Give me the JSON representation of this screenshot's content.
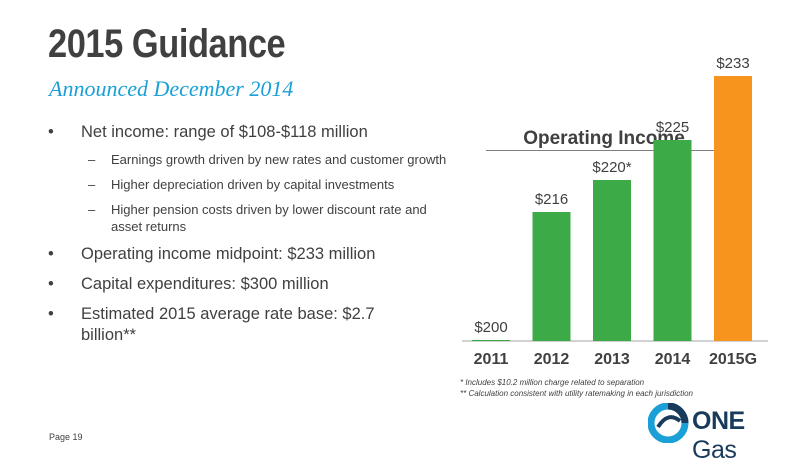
{
  "header": {
    "title": "2015 Guidance",
    "subtitle": "Announced December 2014"
  },
  "bullets": [
    {
      "text": "Net income: range of $108-$118 million",
      "subs": [
        "Earnings growth driven by new rates and customer growth",
        "Higher depreciation driven by capital investments",
        "Higher pension costs driven by lower discount rate and asset returns"
      ]
    },
    {
      "text": "Operating income midpoint: $233 million",
      "subs": []
    },
    {
      "text": "Capital expenditures: $300 million",
      "subs": []
    },
    {
      "text": "Estimated 2015 average rate base: $2.7 billion**",
      "subs": []
    }
  ],
  "footnotes": [
    "* Includes $10.2 million charge related to separation",
    "** Calculation consistent with utility ratemaking in each jurisdiction"
  ],
  "page_label": "Page 19",
  "logo": {
    "word1": "ONE",
    "word2": "Gas"
  },
  "chart_data": {
    "type": "bar",
    "title": "Operating Income",
    "categories": [
      "2011",
      "2012",
      "2013",
      "2014",
      "2015G"
    ],
    "values": [
      200,
      216,
      220,
      225,
      233
    ],
    "value_labels": [
      "$200",
      "$216",
      "$220*",
      "$225",
      "$233"
    ],
    "colors": [
      "#3daa48",
      "#3daa48",
      "#3daa48",
      "#3daa48",
      "#f7941d"
    ],
    "xlabel": "",
    "ylabel": "",
    "grid": false,
    "legend": "none"
  }
}
